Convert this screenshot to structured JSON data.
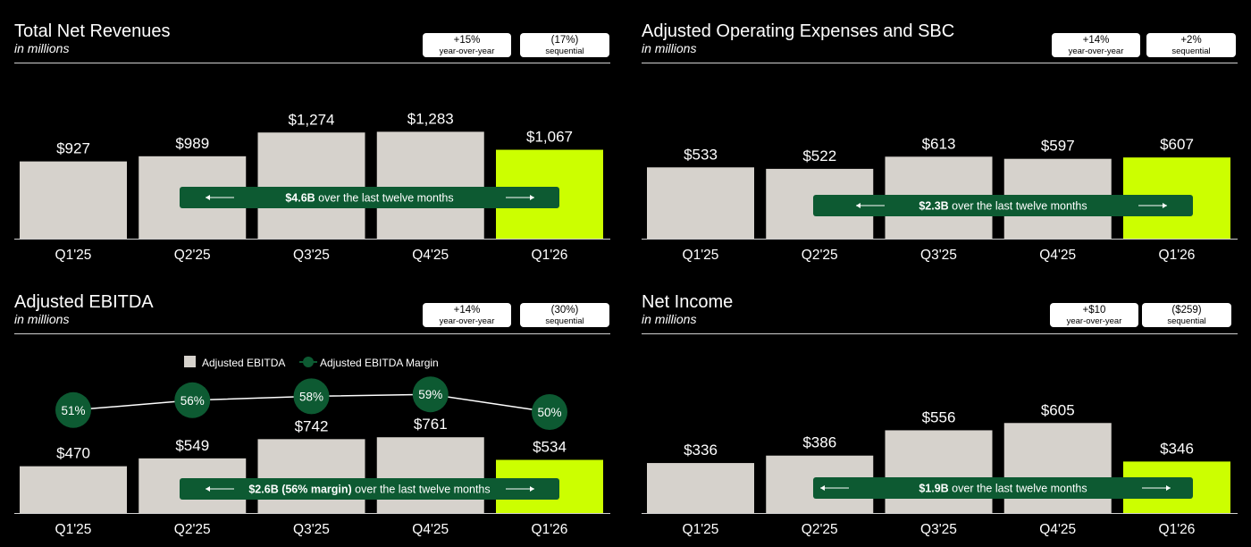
{
  "colors": {
    "background": "#000000",
    "bar": "#d6d2cc",
    "highlight_bar": "#ccff00",
    "banner": "#0d5a32",
    "margin_dot": "#0d5a32",
    "text": "#ffffff"
  },
  "panels": [
    {
      "title": "Total Net Revenues",
      "subtitle": "in millions",
      "badges": [
        {
          "value": "+15%",
          "label": "year-over-year"
        },
        {
          "value": "(17%)",
          "label": "sequential"
        }
      ]
    },
    {
      "title": "Adjusted Operating Expenses and SBC",
      "subtitle": "in millions",
      "badges": [
        {
          "value": "+14%",
          "label": "year-over-year"
        },
        {
          "value": "+2%",
          "label": "sequential"
        }
      ]
    },
    {
      "title": "Adjusted EBITDA",
      "subtitle": "in millions",
      "badges": [
        {
          "value": "+14%",
          "label": "year-over-year"
        },
        {
          "value": "(30%)",
          "label": "sequential"
        }
      ]
    },
    {
      "title": "Net Income",
      "subtitle": "in millions",
      "badges": [
        {
          "value": "+$10",
          "label": "year-over-year"
        },
        {
          "value": "($259)",
          "label": "sequential"
        }
      ]
    }
  ],
  "chart_data": [
    {
      "type": "bar",
      "title": "Total Net Revenues",
      "subtitle": "in millions",
      "categories": [
        "Q1'25",
        "Q2'25",
        "Q3'25",
        "Q4'25",
        "Q1'26"
      ],
      "values": [
        927,
        989,
        1274,
        1283,
        1067
      ],
      "value_labels": [
        "$927",
        "$989",
        "$1,274",
        "$1,283",
        "$1,067"
      ],
      "highlight_index": 4,
      "banner": {
        "bold": "$4.6B",
        "text": " over the last twelve months"
      }
    },
    {
      "type": "bar",
      "title": "Adjusted Operating Expenses and SBC",
      "subtitle": "in millions",
      "categories": [
        "Q1'25",
        "Q2'25",
        "Q3'25",
        "Q4'25",
        "Q1'26"
      ],
      "values": [
        533,
        522,
        613,
        597,
        607
      ],
      "value_labels": [
        "$533",
        "$522",
        "$613",
        "$597",
        "$607"
      ],
      "highlight_index": 4,
      "banner": {
        "bold": "$2.3B",
        "text": " over the last twelve months"
      }
    },
    {
      "type": "bar",
      "title": "Adjusted EBITDA",
      "subtitle": "in millions",
      "categories": [
        "Q1'25",
        "Q2'25",
        "Q3'25",
        "Q4'25",
        "Q1'26"
      ],
      "values": [
        470,
        549,
        742,
        761,
        534
      ],
      "value_labels": [
        "$470",
        "$549",
        "$742",
        "$761",
        "$534"
      ],
      "highlight_index": 4,
      "legend": [
        "Adjusted EBITDA",
        "Adjusted EBITDA Margin"
      ],
      "series": [
        {
          "name": "Adjusted EBITDA",
          "values": [
            470,
            549,
            742,
            761,
            534
          ]
        },
        {
          "name": "Adjusted EBITDA Margin",
          "values": [
            51,
            56,
            58,
            59,
            50
          ],
          "labels": [
            "51%",
            "56%",
            "58%",
            "59%",
            "50%"
          ]
        }
      ],
      "banner": {
        "bold": "$2.6B (56% margin)",
        "text": " over the last twelve months"
      }
    },
    {
      "type": "bar",
      "title": "Net Income",
      "subtitle": "in millions",
      "categories": [
        "Q1'25",
        "Q2'25",
        "Q3'25",
        "Q4'25",
        "Q1'26"
      ],
      "values": [
        336,
        386,
        556,
        605,
        346
      ],
      "value_labels": [
        "$336",
        "$386",
        "$556",
        "$605",
        "$346"
      ],
      "highlight_index": 4,
      "banner": {
        "bold": "$1.9B",
        "text": " over the last twelve months"
      }
    }
  ]
}
